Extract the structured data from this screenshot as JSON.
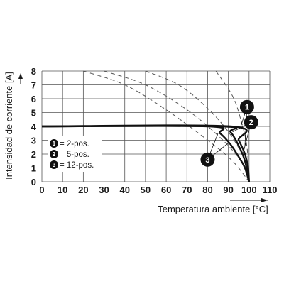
{
  "chart_data": {
    "type": "line",
    "xlabel": "Temperatura ambiente [°C]",
    "ylabel": "Intensidad de corriente [A]",
    "xlim": [
      0,
      110
    ],
    "ylim": [
      0,
      8
    ],
    "x_ticks": [
      0,
      10,
      20,
      30,
      40,
      50,
      60,
      70,
      80,
      90,
      100,
      110
    ],
    "y_ticks": [
      0,
      1,
      2,
      3,
      4,
      5,
      6,
      7,
      8
    ],
    "grid": true,
    "legend": [
      {
        "marker": "1",
        "label": "= 2-pos."
      },
      {
        "marker": "2",
        "label": "= 5-pos."
      },
      {
        "marker": "3",
        "label": "= 12-pos."
      }
    ],
    "series": [
      {
        "marker": "1",
        "points": [
          [
            0,
            4
          ],
          [
            91,
            4
          ],
          [
            95,
            3
          ],
          [
            98,
            2
          ],
          [
            99.5,
            1
          ],
          [
            100,
            0
          ]
        ]
      },
      {
        "marker": "2",
        "points": [
          [
            0,
            4
          ],
          [
            86,
            4
          ],
          [
            91,
            3.6
          ],
          [
            95,
            2.6
          ],
          [
            98,
            1.5
          ],
          [
            100,
            0
          ]
        ]
      },
      {
        "marker": "3",
        "points": [
          [
            0,
            4
          ],
          [
            80,
            4
          ],
          [
            86,
            3.5
          ],
          [
            91,
            2.7
          ],
          [
            95,
            1.8
          ],
          [
            98,
            1
          ],
          [
            100,
            0
          ]
        ]
      }
    ],
    "derating_curves_dashed": [
      {
        "points": [
          [
            20,
            8
          ],
          [
            40,
            7
          ],
          [
            60,
            5.2
          ],
          [
            80,
            3
          ],
          [
            92,
            1.5
          ],
          [
            100,
            0
          ]
        ]
      },
      {
        "points": [
          [
            30,
            8
          ],
          [
            50,
            7
          ],
          [
            70,
            5.2
          ],
          [
            86,
            3.2
          ],
          [
            96,
            1.5
          ],
          [
            100,
            0
          ]
        ]
      },
      {
        "points": [
          [
            50,
            8
          ],
          [
            66,
            7
          ],
          [
            80,
            5.3
          ],
          [
            91,
            3.4
          ],
          [
            98,
            1.5
          ],
          [
            100,
            0
          ]
        ]
      },
      {
        "points": [
          [
            84,
            8
          ],
          [
            92,
            6.2
          ],
          [
            96,
            4.5
          ],
          [
            99,
            2.5
          ],
          [
            100,
            0
          ]
        ]
      }
    ],
    "callouts": [
      {
        "marker": "1",
        "x": 99,
        "y": 5.4
      },
      {
        "marker": "2",
        "x": 101,
        "y": 4.3
      },
      {
        "marker": "3",
        "x": 80,
        "y": 1.6
      }
    ]
  }
}
